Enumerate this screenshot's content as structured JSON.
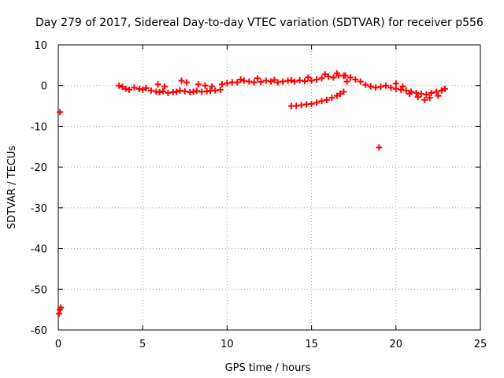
{
  "chart_data": {
    "type": "scatter",
    "title": "Day 279 of 2017, Sidereal Day-to-day VTEC variation (SDTVAR) for receiver p556",
    "xlabel": "GPS time / hours",
    "ylabel": "SDTVAR / TECUs",
    "xlim": [
      0,
      25
    ],
    "ylim": [
      -60,
      10
    ],
    "xticks": [
      0,
      5,
      10,
      15,
      20,
      25
    ],
    "yticks": [
      10,
      0,
      -10,
      -20,
      -30,
      -40,
      -50,
      -60
    ],
    "grid": true,
    "marker": "plus",
    "color": "#ff0000",
    "series": [
      {
        "name": "SDTVAR",
        "x": [
          0.1,
          0.05,
          0.1,
          0.15,
          3.6,
          3.8,
          4.0,
          4.2,
          4.5,
          4.8,
          5.0,
          5.2,
          5.5,
          5.8,
          6.0,
          6.2,
          6.5,
          6.8,
          7.0,
          7.2,
          7.5,
          7.8,
          8.0,
          8.2,
          8.5,
          8.8,
          9.0,
          9.3,
          9.6,
          5.9,
          6.3,
          7.3,
          7.6,
          8.3,
          8.7,
          9.1,
          9.7,
          10.0,
          10.3,
          10.6,
          11.0,
          11.3,
          11.6,
          12.0,
          12.3,
          12.6,
          13.0,
          13.3,
          13.6,
          14.0,
          14.3,
          14.6,
          15.0,
          15.3,
          15.6,
          16.0,
          16.3,
          16.6,
          16.9,
          17.1,
          10.8,
          11.8,
          12.8,
          13.8,
          14.8,
          15.8,
          16.5,
          17.0,
          13.8,
          14.1,
          14.4,
          14.7,
          15.0,
          15.3,
          15.6,
          15.9,
          16.2,
          16.5,
          16.7,
          16.9,
          19.0,
          17.3,
          17.6,
          17.9,
          18.2,
          18.5,
          18.8,
          19.1,
          19.4,
          19.7,
          20.0,
          20.3,
          20.6,
          20.9,
          21.2,
          21.5,
          21.8,
          22.1,
          22.4,
          22.7,
          22.9,
          20.0,
          20.4,
          20.8,
          21.3,
          21.7,
          22.0,
          22.5
        ],
        "y": [
          -6.5,
          -56,
          -55,
          -54.5,
          0,
          -0.3,
          -0.8,
          -1.0,
          -0.5,
          -0.8,
          -1.0,
          -0.6,
          -1.2,
          -1.5,
          -1.6,
          -1.4,
          -1.8,
          -1.6,
          -1.5,
          -1.2,
          -1.4,
          -1.6,
          -1.5,
          -1.3,
          -1.5,
          -1.4,
          -1.3,
          -1.2,
          -1.0,
          0.3,
          -0.2,
          1.2,
          0.8,
          0.3,
          0.0,
          -0.2,
          0.3,
          0.6,
          0.8,
          0.8,
          1.2,
          1.0,
          0.8,
          0.9,
          1.2,
          1.0,
          0.8,
          1.0,
          1.2,
          1.0,
          1.3,
          1.1,
          1.2,
          1.5,
          1.8,
          2.2,
          2.0,
          2.5,
          2.4,
          1.0,
          1.5,
          1.8,
          1.4,
          1.3,
          2.0,
          2.8,
          3.0,
          2.5,
          -5.0,
          -5.0,
          -4.8,
          -4.6,
          -4.5,
          -4.2,
          -3.8,
          -3.5,
          -3.0,
          -2.5,
          -2.0,
          -1.5,
          -15.2,
          2.0,
          1.5,
          1.0,
          0.2,
          -0.2,
          -0.5,
          -0.3,
          0.0,
          -0.5,
          -0.8,
          -1.0,
          -1.2,
          -1.5,
          -1.8,
          -2.0,
          -2.2,
          -1.8,
          -1.5,
          -1.2,
          -0.8,
          0.5,
          -0.2,
          -2.0,
          -2.8,
          -3.5,
          -3.0,
          -2.5
        ]
      }
    ]
  }
}
